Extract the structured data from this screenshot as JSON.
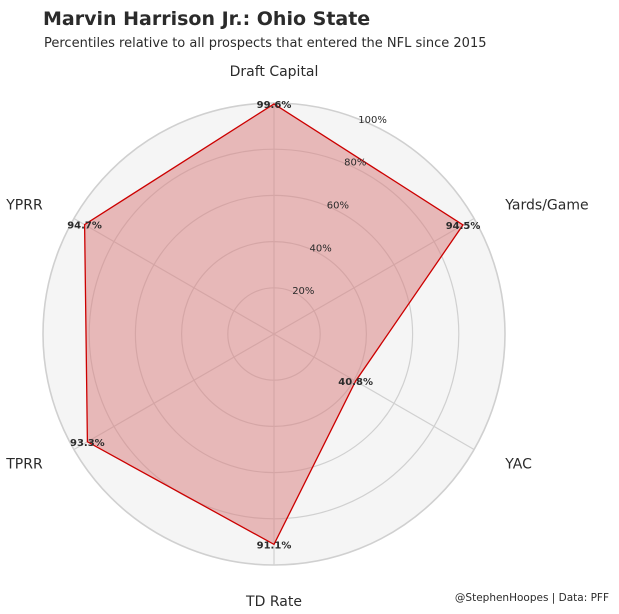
{
  "title": "Marvin Harrison Jr.: Ohio State",
  "subtitle": "Percentiles relative to all prospects that entered the NFL since 2015",
  "credit": "@StephenHoopes | Data: PFF",
  "chart_data": {
    "type": "radar",
    "categories": [
      "Draft Capital",
      "Yards/Game",
      "YAC",
      "TD Rate",
      "TPRR",
      "YPRR"
    ],
    "values": [
      99.6,
      94.5,
      40.8,
      91.1,
      93.3,
      94.7
    ],
    "value_labels": [
      "99.6%",
      "94.5%",
      "40.8%",
      "91.1%",
      "93.3%",
      "94.7%"
    ],
    "range": [
      0,
      100
    ],
    "ticks": [
      20,
      40,
      60,
      80,
      100
    ],
    "tick_labels": [
      "20%",
      "40%",
      "60%",
      "80%",
      "100%"
    ],
    "grid": true,
    "colors": {
      "fill": "#d97b7b",
      "line": "#cc0000",
      "background": "#f5f5f5",
      "grid": "#d0d0d0"
    }
  }
}
